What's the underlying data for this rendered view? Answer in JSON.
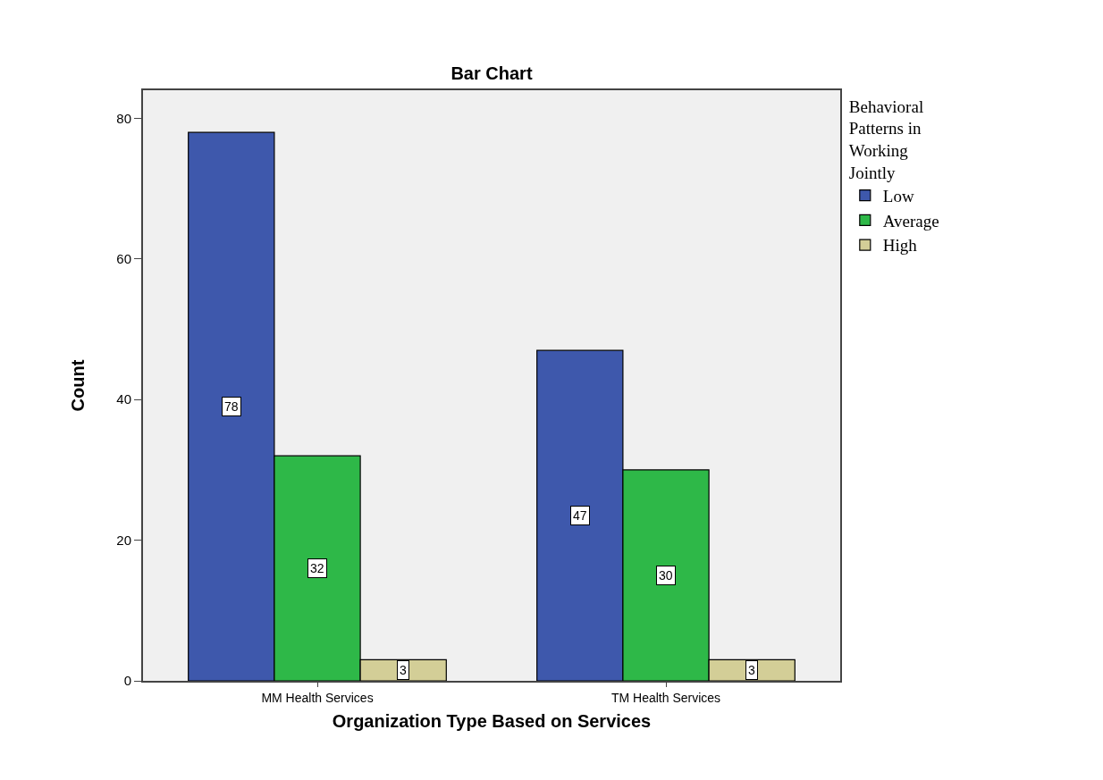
{
  "chart_data": {
    "type": "bar",
    "title": "Bar Chart",
    "xlabel": "Organization Type Based on Services",
    "ylabel": "Count",
    "legend_title": "Behavioral Patterns in Working Jointly",
    "categories": [
      "MM Health Services",
      "TM Health Services"
    ],
    "series": [
      {
        "name": "Low",
        "color": "#3e58ac",
        "values": [
          78,
          47
        ]
      },
      {
        "name": "Average",
        "color": "#2eb848",
        "values": [
          32,
          30
        ]
      },
      {
        "name": "High",
        "color": "#d3ce97",
        "values": [
          3,
          3
        ]
      }
    ],
    "ylim": [
      0,
      84
    ],
    "yticks": [
      0,
      20,
      40,
      60,
      80
    ],
    "grid": false,
    "legend": "top right",
    "data_labels": true
  }
}
